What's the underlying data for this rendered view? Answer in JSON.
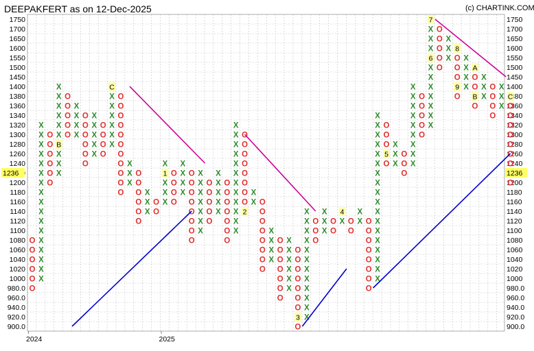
{
  "chart_data": {
    "type": "point-and-figure",
    "title": "DEEPAKFERT as on 12-Dec-2025",
    "credit": "(c) CHARTINK.COM",
    "current_price": "1236",
    "x_year_labels": [
      {
        "label": "2024",
        "column": 0
      },
      {
        "label": "2025",
        "column": 15
      }
    ],
    "y_tick_labels": [
      "1750",
      "1700",
      "1650",
      "1600",
      "1550",
      "1500",
      "1450",
      "1400",
      "1380",
      "1360",
      "1340",
      "1320",
      "1300",
      "1280",
      "1260",
      "1240",
      "1220",
      "1200",
      "1180",
      "1160",
      "1140",
      "1120",
      "1100",
      "1080",
      "1060",
      "1040",
      "1020",
      "1000",
      "980.0",
      "960.0",
      "940.0",
      "920.0",
      "900.0"
    ],
    "columns": [
      {
        "type": "O",
        "high": "1080",
        "low": "980.0",
        "marks": []
      },
      {
        "type": "X",
        "low": "1000",
        "high": "1320",
        "marks": []
      },
      {
        "type": "O",
        "high": "1300",
        "low": "1200",
        "marks": []
      },
      {
        "type": "X",
        "low": "1220",
        "high": "1400",
        "marks": [
          {
            "price": "1280",
            "label": "B"
          }
        ]
      },
      {
        "type": "O",
        "high": "1380",
        "low": "1300",
        "marks": []
      },
      {
        "type": "X",
        "low": "1300",
        "high": "1360",
        "marks": []
      },
      {
        "type": "O",
        "high": "1340",
        "low": "1240",
        "marks": []
      },
      {
        "type": "X",
        "low": "1260",
        "high": "1340",
        "marks": []
      },
      {
        "type": "O",
        "high": "1320",
        "low": "1260",
        "marks": []
      },
      {
        "type": "X",
        "low": "1280",
        "high": "1400",
        "marks": [
          {
            "price": "1400",
            "label": "C"
          }
        ]
      },
      {
        "type": "O",
        "high": "1380",
        "low": "1180",
        "marks": []
      },
      {
        "type": "X",
        "low": "1200",
        "high": "1240",
        "marks": []
      },
      {
        "type": "O",
        "high": "1220",
        "low": "1120",
        "marks": []
      },
      {
        "type": "X",
        "low": "1140",
        "high": "1180",
        "marks": []
      },
      {
        "type": "O",
        "high": "1160",
        "low": "1140",
        "marks": []
      },
      {
        "type": "X",
        "low": "1160",
        "high": "1240",
        "marks": [
          {
            "price": "1220",
            "label": "1"
          }
        ]
      },
      {
        "type": "O",
        "high": "1220",
        "low": "1160",
        "marks": []
      },
      {
        "type": "X",
        "low": "1180",
        "high": "1240",
        "marks": []
      },
      {
        "type": "O",
        "high": "1220",
        "low": "1080",
        "marks": []
      },
      {
        "type": "X",
        "low": "1100",
        "high": "1220",
        "marks": []
      },
      {
        "type": "O",
        "high": "1200",
        "low": "1120",
        "marks": []
      },
      {
        "type": "X",
        "low": "1140",
        "high": "1220",
        "marks": []
      },
      {
        "type": "O",
        "high": "1200",
        "low": "1080",
        "marks": []
      },
      {
        "type": "X",
        "low": "1100",
        "high": "1320",
        "marks": []
      },
      {
        "type": "O",
        "high": "1300",
        "low": "1140",
        "marks": [
          {
            "price": "1140",
            "label": "2"
          }
        ]
      },
      {
        "type": "X",
        "low": "1160",
        "high": "1180",
        "marks": []
      },
      {
        "type": "O",
        "high": "1160",
        "low": "1020",
        "marks": []
      },
      {
        "type": "X",
        "low": "1040",
        "high": "1100",
        "marks": []
      },
      {
        "type": "O",
        "high": "1080",
        "low": "960.0",
        "marks": []
      },
      {
        "type": "X",
        "low": "980.0",
        "high": "1080",
        "marks": []
      },
      {
        "type": "O",
        "high": "1060",
        "low": "900.0",
        "marks": [
          {
            "price": "920.0",
            "label": "3"
          }
        ]
      },
      {
        "type": "X",
        "low": "920.0",
        "high": "1140",
        "marks": []
      },
      {
        "type": "O",
        "high": "1120",
        "low": "1080",
        "marks": []
      },
      {
        "type": "X",
        "low": "1100",
        "high": "1140",
        "marks": []
      },
      {
        "type": "O",
        "high": "1120",
        "low": "1100",
        "marks": []
      },
      {
        "type": "X",
        "low": "1120",
        "high": "1140",
        "marks": [
          {
            "price": "1140",
            "label": "4"
          }
        ]
      },
      {
        "type": "O",
        "high": "1120",
        "low": "1100",
        "marks": []
      },
      {
        "type": "X",
        "low": "1120",
        "high": "1140",
        "marks": []
      },
      {
        "type": "O",
        "high": "1120",
        "low": "980.0",
        "marks": []
      },
      {
        "type": "X",
        "low": "1000",
        "high": "1340",
        "marks": []
      },
      {
        "type": "O",
        "high": "1320",
        "low": "1240",
        "marks": [
          {
            "price": "1260",
            "label": "5"
          }
        ]
      },
      {
        "type": "X",
        "low": "1240",
        "high": "1280",
        "marks": []
      },
      {
        "type": "O",
        "high": "1260",
        "low": "1220",
        "marks": []
      },
      {
        "type": "X",
        "low": "1240",
        "high": "1400",
        "marks": []
      },
      {
        "type": "O",
        "high": "1380",
        "low": "1300",
        "marks": []
      },
      {
        "type": "X",
        "low": "1320",
        "high": "1750",
        "marks": [
          {
            "price": "1550",
            "label": "6"
          },
          {
            "price": "1750",
            "label": "7"
          }
        ]
      },
      {
        "type": "O",
        "high": "1700",
        "low": "1500",
        "marks": []
      },
      {
        "type": "X",
        "low": "1550",
        "high": "1650",
        "marks": []
      },
      {
        "type": "O",
        "high": "1600",
        "low": "1380",
        "marks": [
          {
            "price": "1600",
            "label": "8"
          },
          {
            "price": "1400",
            "label": "9"
          }
        ]
      },
      {
        "type": "X",
        "low": "1400",
        "high": "1550",
        "marks": []
      },
      {
        "type": "O",
        "high": "1500",
        "low": "1360",
        "marks": [
          {
            "price": "1500",
            "label": "A"
          },
          {
            "price": "1380",
            "label": "B"
          }
        ]
      },
      {
        "type": "X",
        "low": "1380",
        "high": "1450",
        "marks": []
      },
      {
        "type": "O",
        "high": "1400",
        "low": "1340",
        "marks": []
      },
      {
        "type": "X",
        "low": "1360",
        "high": "1400",
        "marks": []
      },
      {
        "type": "O",
        "high": "1380",
        "low": "1200",
        "marks": [
          {
            "price": "1380",
            "label": "C"
          }
        ]
      }
    ],
    "trendlines": [
      {
        "kind": "support",
        "from": {
          "column": 4.5,
          "price": "900.0"
        },
        "to": {
          "column": 18,
          "price": "1140"
        }
      },
      {
        "kind": "resistance",
        "from": {
          "column": 11,
          "price": "1400"
        },
        "to": {
          "column": 19.5,
          "price": "1240"
        }
      },
      {
        "kind": "resistance",
        "from": {
          "column": 24,
          "price": "1300"
        },
        "to": {
          "column": 32,
          "price": "1140"
        }
      },
      {
        "kind": "support",
        "from": {
          "column": 30.5,
          "price": "900.0"
        },
        "to": {
          "column": 35.5,
          "price": "1020"
        }
      },
      {
        "kind": "support",
        "from": {
          "column": 38.5,
          "price": "980.0"
        },
        "to": {
          "column": 54,
          "price": "1260"
        }
      },
      {
        "kind": "resistance",
        "from": {
          "column": 45.5,
          "price": "1750"
        },
        "to": {
          "column": 53.5,
          "price": "1450"
        }
      }
    ],
    "grid": true,
    "colors": {
      "x_mark": "#2e8b2e",
      "o_mark": "#e03030",
      "support_line": "#0000cc",
      "resistance_line": "#cc0099",
      "month_marker_bg": "#ffffaa",
      "price_tag_bg": "#ffff66",
      "grid_line": "#c4c4c4"
    }
  }
}
